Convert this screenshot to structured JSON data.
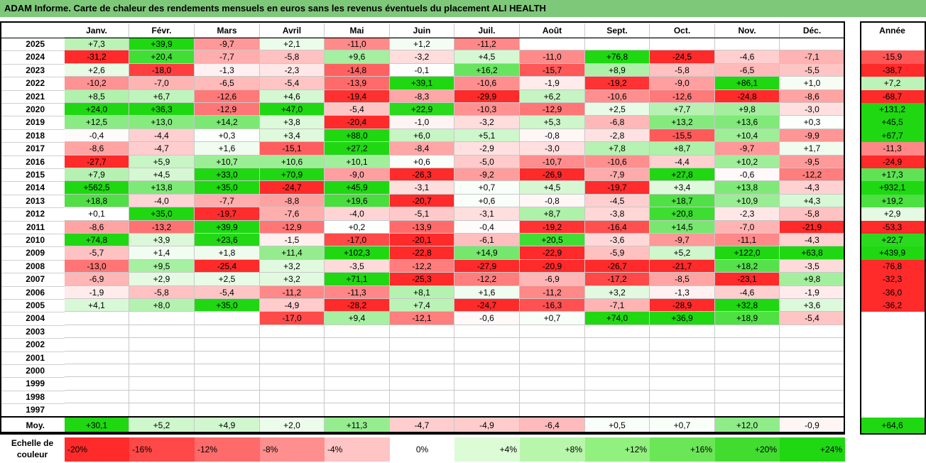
{
  "title": "ADAM Informe. Carte de chaleur des rendements mensuels en euros sans les revenus éventuels du placement ALI HEALTH",
  "chart_data": {
    "type": "heatmap",
    "months": [
      "Janv.",
      "Févr.",
      "Mars",
      "Avril",
      "Mai",
      "Juin",
      "Juil.",
      "Août",
      "Sept.",
      "Oct.",
      "Nov.",
      "Déc."
    ],
    "year_header": "Année",
    "rows": [
      {
        "year": "2025",
        "values": [
          "+7,3",
          "+39,9",
          "-9,7",
          "+2,1",
          "-11,0",
          "+1,2",
          "-11,2",
          "",
          "",
          "",
          "",
          ""
        ],
        "annual": ""
      },
      {
        "year": "2024",
        "values": [
          "-31,2",
          "+20,4",
          "-7,7",
          "-5,8",
          "+9,6",
          "-3,2",
          "+4,5",
          "-11,0",
          "+76,8",
          "-24,5",
          "-4,6",
          "-7,1"
        ],
        "annual": "-15,9"
      },
      {
        "year": "2023",
        "values": [
          "+2,6",
          "-18,0",
          "-1,3",
          "-2,3",
          "-14,8",
          "-0,1",
          "+16,2",
          "-15,7",
          "+8,9",
          "-5,8",
          "-6,5",
          "-5,5"
        ],
        "annual": "-38,7"
      },
      {
        "year": "2022",
        "values": [
          "-10,2",
          "-7,0",
          "-6,5",
          "-5,4",
          "-13,9",
          "+39,1",
          "-10,6",
          "-1,9",
          "-19,2",
          "-9,0",
          "+86,1",
          "+1,0"
        ],
        "annual": "+7,2"
      },
      {
        "year": "2021",
        "values": [
          "+8,5",
          "+6,7",
          "-12,6",
          "+4,6",
          "-19,4",
          "-8,3",
          "-29,9",
          "+6,2",
          "-10,6",
          "-12,6",
          "-24,8",
          "-8,6"
        ],
        "annual": "-68,7"
      },
      {
        "year": "2020",
        "values": [
          "+24,0",
          "+36,3",
          "-12,9",
          "+47,0",
          "-5,4",
          "+22,9",
          "-10,3",
          "-12,9",
          "+2,5",
          "+7,7",
          "+9,8",
          "-3,0"
        ],
        "annual": "+131,2"
      },
      {
        "year": "2019",
        "values": [
          "+12,5",
          "+13,0",
          "+14,2",
          "+3,8",
          "-20,4",
          "-1,0",
          "-3,2",
          "+5,3",
          "-6,8",
          "+13,2",
          "+13,6",
          "+0,3"
        ],
        "annual": "+45,5"
      },
      {
        "year": "2018",
        "values": [
          "-0,4",
          "-4,4",
          "+0,3",
          "+3,4",
          "+88,0",
          "+6,0",
          "+5,1",
          "-0,8",
          "-2,8",
          "-15,5",
          "+10,4",
          "-9,9"
        ],
        "annual": "+67,7"
      },
      {
        "year": "2017",
        "values": [
          "-8,6",
          "-4,7",
          "+1,6",
          "-15,1",
          "+27,2",
          "-8,4",
          "-2,9",
          "-3,0",
          "+7,8",
          "+8,7",
          "-9,7",
          "+1,7"
        ],
        "annual": "-11,3"
      },
      {
        "year": "2016",
        "values": [
          "-27,7",
          "+5,9",
          "+10,7",
          "+10,6",
          "+10,1",
          "+0,6",
          "-5,0",
          "-10,7",
          "-10,6",
          "-4,4",
          "+10,2",
          "-9,5"
        ],
        "annual": "-24,9"
      },
      {
        "year": "2015",
        "values": [
          "+7,9",
          "+4,5",
          "+33,0",
          "+70,9",
          "-9,0",
          "-26,3",
          "-9,2",
          "-26,9",
          "-7,9",
          "+27,8",
          "-0,6",
          "-12,2"
        ],
        "annual": "+17,3"
      },
      {
        "year": "2014",
        "values": [
          "+562,5",
          "+13,8",
          "+35,0",
          "-24,7",
          "+45,9",
          "-3,1",
          "+0,7",
          "+4,5",
          "-19,7",
          "+3,4",
          "+13,8",
          "-4,3"
        ],
        "annual": "+932,1"
      },
      {
        "year": "2013",
        "values": [
          "+18,8",
          "-4,0",
          "-7,7",
          "-8,8",
          "+19,6",
          "-20,7",
          "+0,6",
          "-0,8",
          "-4,5",
          "+18,7",
          "+10,9",
          "+4,3"
        ],
        "annual": "+19,2"
      },
      {
        "year": "2012",
        "values": [
          "+0,1",
          "+35,0",
          "-19,7",
          "-7,6",
          "-4,0",
          "-5,1",
          "-3,1",
          "+8,7",
          "-3,8",
          "+20,8",
          "-2,3",
          "-5,8"
        ],
        "annual": "+2,9"
      },
      {
        "year": "2011",
        "values": [
          "-8,6",
          "-13,2",
          "+39,9",
          "-12,9",
          "+0,2",
          "-13,9",
          "-0,4",
          "-19,2",
          "-16,4",
          "+14,5",
          "-7,0",
          "-21,9"
        ],
        "annual": "-53,3"
      },
      {
        "year": "2010",
        "values": [
          "+74,8",
          "+3,9",
          "+23,6",
          "-1,5",
          "-17,0",
          "-20,1",
          "-6,1",
          "+20,5",
          "-3,6",
          "-9,7",
          "-11,1",
          "-4,3"
        ],
        "annual": "+22,7"
      },
      {
        "year": "2009",
        "values": [
          "-5,7",
          "+1,4",
          "+1,8",
          "+11,4",
          "+102,3",
          "-22,8",
          "+14,9",
          "-22,9",
          "-5,9",
          "+5,2",
          "+122,0",
          "+63,8"
        ],
        "annual": "+439,9"
      },
      {
        "year": "2008",
        "values": [
          "-13,0",
          "+9,5",
          "-25,4",
          "+3,2",
          "-3,5",
          "-12,2",
          "-27,9",
          "-20,9",
          "-26,7",
          "-21,7",
          "+18,2",
          "-3,5"
        ],
        "annual": "-76,8"
      },
      {
        "year": "2007",
        "values": [
          "-6,9",
          "+2,9",
          "+2,5",
          "+3,2",
          "+71,1",
          "-25,3",
          "-12,2",
          "-6,9",
          "-17,2",
          "-8,5",
          "-23,1",
          "+9,8"
        ],
        "annual": "-32,3"
      },
      {
        "year": "2006",
        "values": [
          "-1,9",
          "-5,8",
          "-5,4",
          "-11,2",
          "-11,3",
          "+8,1",
          "+1,6",
          "-11,2",
          "+3,2",
          "-1,3",
          "-4,6",
          "-1,9"
        ],
        "annual": "-36,0"
      },
      {
        "year": "2005",
        "values": [
          "+4,1",
          "+8,0",
          "+35,0",
          "-4,9",
          "-28,2",
          "+7,4",
          "-24,7",
          "-16,3",
          "-7,1",
          "-28,9",
          "+32,8",
          "+3,6"
        ],
        "annual": "-36,2"
      },
      {
        "year": "2004",
        "values": [
          "",
          "",
          "",
          "-17,0",
          "+9,4",
          "-12,1",
          "-0,6",
          "+0,7",
          "+74,0",
          "+36,9",
          "+18,9",
          "-5,4"
        ],
        "annual": ""
      },
      {
        "year": "2003",
        "values": [
          "",
          "",
          "",
          "",
          "",
          "",
          "",
          "",
          "",
          "",
          "",
          ""
        ],
        "annual": ""
      },
      {
        "year": "2002",
        "values": [
          "",
          "",
          "",
          "",
          "",
          "",
          "",
          "",
          "",
          "",
          "",
          ""
        ],
        "annual": ""
      },
      {
        "year": "2001",
        "values": [
          "",
          "",
          "",
          "",
          "",
          "",
          "",
          "",
          "",
          "",
          "",
          ""
        ],
        "annual": ""
      },
      {
        "year": "2000",
        "values": [
          "",
          "",
          "",
          "",
          "",
          "",
          "",
          "",
          "",
          "",
          "",
          ""
        ],
        "annual": ""
      },
      {
        "year": "1999",
        "values": [
          "",
          "",
          "",
          "",
          "",
          "",
          "",
          "",
          "",
          "",
          "",
          ""
        ],
        "annual": ""
      },
      {
        "year": "1998",
        "values": [
          "",
          "",
          "",
          "",
          "",
          "",
          "",
          "",
          "",
          "",
          "",
          ""
        ],
        "annual": ""
      },
      {
        "year": "1997",
        "values": [
          "",
          "",
          "",
          "",
          "",
          "",
          "",
          "",
          "",
          "",
          "",
          ""
        ],
        "annual": ""
      }
    ],
    "average": {
      "label": "Moy.",
      "values": [
        "+30,1",
        "+5,2",
        "+4,9",
        "+2,0",
        "+11,3",
        "-4,7",
        "-4,9",
        "-6,4",
        "+0,5",
        "+0,7",
        "+12,0",
        "-0,9"
      ],
      "annual": "+64,6"
    },
    "color_scale": {
      "label_line1": "Echelle de",
      "label_line2": "couleur",
      "stops": [
        {
          "label": "-20%",
          "value": -20,
          "color": "#ff2a2a"
        },
        {
          "label": "-16%",
          "value": -16,
          "color": "#ff4848"
        },
        {
          "label": "-12%",
          "value": -12,
          "color": "#ff6a6a"
        },
        {
          "label": "-8%",
          "value": -8,
          "color": "#ff8e8e"
        },
        {
          "label": "-4%",
          "value": -4,
          "color": "#ffc4c4"
        },
        {
          "label": "0%",
          "value": 0,
          "color": "#ffffff"
        },
        {
          "label": "+4%",
          "value": 4,
          "color": "#dcfcd6"
        },
        {
          "label": "+8%",
          "value": 8,
          "color": "#b8f6ac"
        },
        {
          "label": "+12%",
          "value": 12,
          "color": "#92f07f"
        },
        {
          "label": "+16%",
          "value": 16,
          "color": "#6ae656"
        },
        {
          "label": "+20%",
          "value": 20,
          "color": "#42dc30"
        },
        {
          "label": "+24%",
          "value": 24,
          "color": "#1fd812"
        }
      ]
    }
  }
}
